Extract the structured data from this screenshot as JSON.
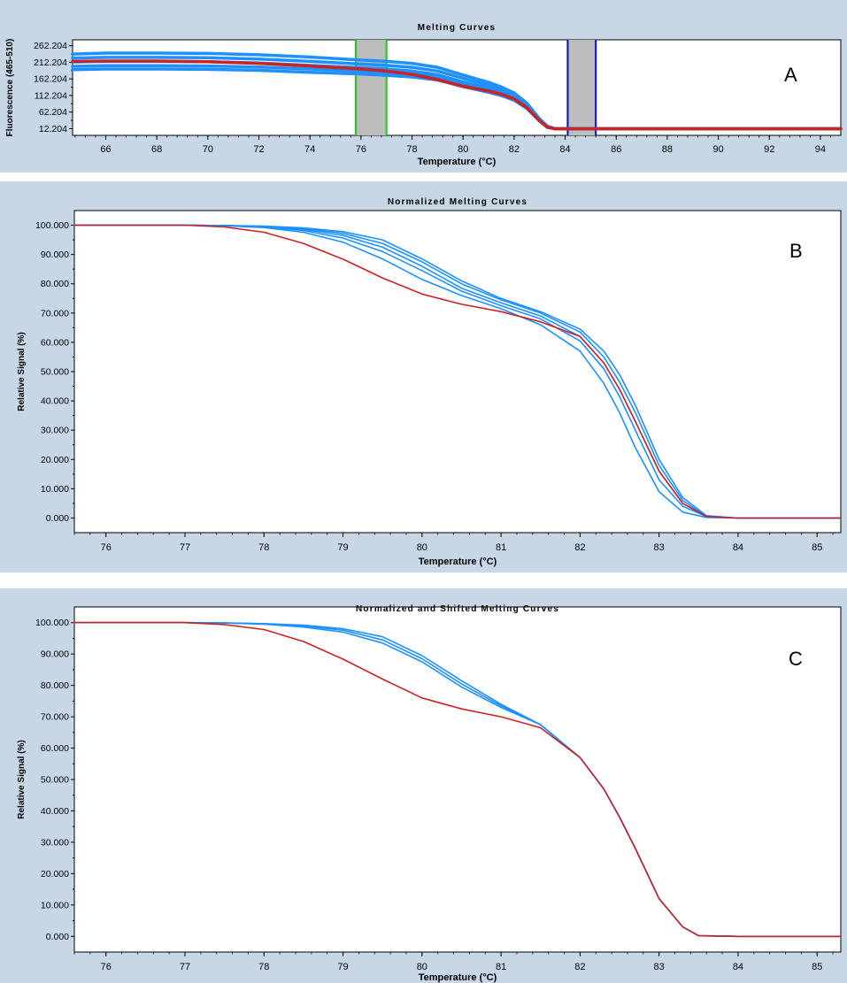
{
  "chart_data": [
    {
      "type": "line",
      "panel_letter": "A",
      "title": "Melting Curves",
      "xlabel": "Temperature (°C)",
      "ylabel": "Fluorescence (465-510)",
      "xlim": [
        64.7,
        94.8
      ],
      "ylim": [
        -8,
        280
      ],
      "x_ticks": [
        66,
        68,
        70,
        72,
        74,
        76,
        78,
        80,
        82,
        84,
        86,
        88,
        90,
        92,
        94
      ],
      "y_ticks": [
        "262.204",
        "212.204",
        "162.204",
        "112.204",
        "62.204",
        "12.204"
      ],
      "regions": [
        {
          "from": 75.8,
          "to": 77.0,
          "border_color": "#22cc22"
        },
        {
          "from": 84.1,
          "to": 85.2,
          "border_color": "#1a1ac8"
        }
      ],
      "series": [
        {
          "color": "#1e90ff",
          "x": [
            64.7,
            66,
            68,
            70,
            72,
            74,
            76,
            77,
            78,
            79,
            80,
            81,
            81.5,
            82,
            82.5,
            83,
            83.3,
            83.6,
            84,
            86,
            88,
            90,
            92,
            94.8
          ],
          "y": [
            213,
            215,
            215,
            214,
            210,
            203,
            196,
            192,
            186,
            175,
            153,
            135,
            123,
            108,
            80,
            38,
            18,
            12,
            12,
            12,
            12,
            12,
            12,
            12
          ]
        },
        {
          "color": "#1e90ff",
          "x": [
            64.7,
            66,
            68,
            70,
            72,
            74,
            76,
            77,
            78,
            79,
            80,
            81,
            81.5,
            82,
            82.5,
            83,
            83.3,
            83.6,
            84,
            86,
            88,
            90,
            92,
            94.8
          ],
          "y": [
            225,
            227,
            227,
            226,
            222,
            215,
            207,
            203,
            197,
            186,
            164,
            143,
            130,
            114,
            85,
            40,
            19,
            12,
            12,
            12,
            12,
            12,
            12,
            12
          ]
        },
        {
          "color": "#1e90ff",
          "x": [
            64.7,
            66,
            68,
            70,
            72,
            74,
            76,
            77,
            78,
            79,
            80,
            81,
            81.5,
            82,
            82.5,
            83,
            83.3,
            83.6,
            84,
            86,
            88,
            90,
            92,
            94.8
          ],
          "y": [
            200,
            202,
            202,
            201,
            198,
            192,
            186,
            182,
            177,
            167,
            146,
            128,
            117,
            103,
            76,
            36,
            17,
            12,
            12,
            12,
            12,
            12,
            12,
            12
          ]
        },
        {
          "color": "#1e90ff",
          "x": [
            64.7,
            66,
            68,
            70,
            72,
            74,
            76,
            77,
            78,
            79,
            80,
            81,
            81.5,
            82,
            82.5,
            83,
            83.3,
            83.6,
            84,
            86,
            88,
            90,
            92,
            94.8
          ],
          "y": [
            237,
            240,
            240,
            239,
            235,
            228,
            219,
            215,
            209,
            197,
            174,
            152,
            138,
            120,
            89,
            42,
            20,
            12,
            12,
            12,
            12,
            12,
            12,
            12
          ]
        },
        {
          "color": "#cc2222",
          "x": [
            64.7,
            66,
            68,
            70,
            72,
            74,
            76,
            77,
            78,
            79,
            80,
            81,
            81.5,
            82,
            82.5,
            83,
            83.3,
            83.6,
            84,
            86,
            88,
            90,
            92,
            94.8
          ],
          "y": [
            215,
            216,
            216,
            214,
            209,
            201,
            192,
            186,
            176,
            160,
            140,
            126,
            116,
            102,
            76,
            36,
            17,
            12,
            12,
            12,
            12,
            12,
            12,
            12
          ]
        },
        {
          "color": "#1e90ff",
          "x": [
            64.7,
            66,
            68,
            70,
            72,
            74,
            76,
            77,
            78,
            79,
            80,
            81,
            81.5,
            82,
            82.5,
            83,
            83.3,
            83.6,
            84,
            86,
            88,
            90,
            92,
            94.8
          ],
          "y": [
            190,
            192,
            192,
            191,
            188,
            182,
            177,
            173,
            168,
            159,
            139,
            122,
            112,
            98,
            73,
            35,
            16,
            12,
            12,
            12,
            12,
            12,
            12,
            12
          ]
        }
      ]
    },
    {
      "type": "line",
      "panel_letter": "B",
      "title": "Normalized Melting Curves",
      "xlabel": "Temperature (°C)",
      "ylabel": "Relative Signal (%)",
      "xlim": [
        75.6,
        85.3
      ],
      "ylim": [
        -5,
        105
      ],
      "x_ticks": [
        76,
        77,
        78,
        79,
        80,
        81,
        82,
        83,
        84,
        85
      ],
      "y_ticks": [
        "100.000",
        "90.000",
        "80.000",
        "70.000",
        "60.000",
        "50.000",
        "40.000",
        "30.000",
        "20.000",
        "10.000",
        "0.000"
      ],
      "series": [
        {
          "color": "#1e90ff",
          "x": [
            75.6,
            77,
            77.5,
            78,
            78.5,
            79,
            79.5,
            80,
            80.5,
            81,
            81.5,
            82,
            82.3,
            82.5,
            82.7,
            83,
            83.3,
            83.6,
            84,
            85.3
          ],
          "y": [
            100,
            100,
            99.9,
            99.5,
            98.6,
            96.5,
            92.5,
            86,
            78.5,
            73.5,
            69,
            62,
            53,
            44,
            33,
            16,
            5,
            0.5,
            0,
            0
          ]
        },
        {
          "color": "#1e90ff",
          "x": [
            75.6,
            77,
            77.5,
            78,
            78.5,
            79,
            79.5,
            80,
            80.5,
            81,
            81.5,
            82,
            82.3,
            82.5,
            82.7,
            83,
            83.3,
            83.6,
            84,
            85.3
          ],
          "y": [
            100,
            100,
            99.9,
            99.6,
            98.9,
            97.2,
            93.8,
            87.5,
            80,
            74.5,
            70,
            63.5,
            55,
            46.5,
            36,
            18,
            6,
            0.5,
            0,
            0
          ]
        },
        {
          "color": "#1e90ff",
          "x": [
            75.6,
            77,
            77.5,
            78,
            78.5,
            79,
            79.5,
            80,
            80.5,
            81,
            81.5,
            82,
            82.3,
            82.5,
            82.7,
            83,
            83.3,
            83.6,
            84,
            85.3
          ],
          "y": [
            100,
            100,
            99.9,
            99.4,
            98.2,
            95.6,
            91,
            84.5,
            77.5,
            72.5,
            68,
            60.5,
            51,
            41.5,
            30,
            13,
            4,
            0.5,
            0,
            0
          ]
        },
        {
          "color": "#1e90ff",
          "x": [
            75.6,
            77,
            77.5,
            78,
            78.5,
            79,
            79.5,
            80,
            80.5,
            81,
            81.5,
            82,
            82.3,
            82.5,
            82.7,
            83,
            83.3,
            83.6,
            84,
            85.3
          ],
          "y": [
            100,
            100,
            99.9,
            99.7,
            99.1,
            97.8,
            95,
            88.5,
            81,
            75,
            70.5,
            64.5,
            57,
            49,
            38.5,
            20,
            7,
            0.8,
            0,
            0
          ]
        },
        {
          "color": "#1e90ff",
          "x": [
            75.6,
            77,
            77.5,
            78,
            78.5,
            79,
            79.5,
            80,
            80.5,
            81,
            81.5,
            82,
            82.3,
            82.5,
            82.7,
            83,
            83.3,
            83.6,
            84,
            85.3
          ],
          "y": [
            100,
            100,
            99.8,
            99.2,
            97.6,
            94.2,
            88.5,
            81.5,
            76,
            71.5,
            66,
            57,
            46,
            36,
            24,
            9,
            2,
            0.2,
            0,
            0
          ]
        },
        {
          "color": "#cc2222",
          "x": [
            75.6,
            77,
            77.5,
            78,
            78.5,
            79,
            79.5,
            80,
            80.5,
            81,
            81.5,
            82,
            82.3,
            82.5,
            82.7,
            83,
            83.3,
            83.6,
            84,
            85.3
          ],
          "y": [
            100,
            100,
            99.4,
            97.6,
            93.8,
            88.4,
            82,
            76.5,
            73,
            70.5,
            67,
            62,
            53,
            44,
            33,
            16,
            5,
            0.5,
            0,
            0
          ]
        }
      ]
    },
    {
      "type": "line",
      "panel_letter": "C",
      "title": "Normalized and Shifted Melting Curves",
      "xlabel": "Temperature (°C)",
      "ylabel": "Relative Signal (%)",
      "xlim": [
        75.6,
        85.3
      ],
      "ylim": [
        -5,
        105
      ],
      "x_ticks": [
        76,
        77,
        78,
        79,
        80,
        81,
        82,
        83,
        84,
        85
      ],
      "y_ticks": [
        "100.000",
        "90.000",
        "80.000",
        "70.000",
        "60.000",
        "50.000",
        "40.000",
        "30.000",
        "20.000",
        "10.000",
        "0.000"
      ],
      "series": [
        {
          "color": "#1e90ff",
          "x": [
            75.6,
            77,
            77.5,
            78,
            78.5,
            79,
            79.5,
            80,
            80.5,
            81,
            81.5,
            82,
            82.3,
            82.5,
            82.7,
            83,
            83.3,
            83.5,
            84,
            85.3
          ],
          "y": [
            100,
            100,
            99.9,
            99.6,
            98.9,
            97.6,
            94.5,
            88.5,
            80.5,
            73.5,
            67.5,
            57,
            47,
            38,
            28,
            12,
            3,
            0.2,
            0,
            0
          ]
        },
        {
          "color": "#1e90ff",
          "x": [
            75.6,
            77,
            77.5,
            78,
            78.5,
            79,
            79.5,
            80,
            80.5,
            81,
            81.5,
            82,
            82.3,
            82.5,
            82.7,
            83,
            83.3,
            83.5,
            84,
            85.3
          ],
          "y": [
            100,
            100,
            99.9,
            99.7,
            99.2,
            98.1,
            95.5,
            89.5,
            81.5,
            74,
            67.5,
            57,
            47,
            38,
            28,
            12,
            3,
            0.2,
            0,
            0
          ]
        },
        {
          "color": "#1e90ff",
          "x": [
            75.6,
            77,
            77.5,
            78,
            78.5,
            79,
            79.5,
            80,
            80.5,
            81,
            81.5,
            82,
            82.3,
            82.5,
            82.7,
            83,
            83.3,
            83.5,
            84,
            85.3
          ],
          "y": [
            100,
            100,
            99.9,
            99.5,
            98.6,
            97,
            93.5,
            87.5,
            79.5,
            73,
            67.5,
            57,
            47,
            38,
            28,
            12,
            3,
            0.2,
            0,
            0
          ]
        },
        {
          "color": "#cc2222",
          "x": [
            75.6,
            77,
            77.5,
            78,
            78.5,
            79,
            79.5,
            80,
            80.5,
            81,
            81.5,
            82,
            82.3,
            82.5,
            82.7,
            83,
            83.3,
            83.5,
            84,
            85.3
          ],
          "y": [
            100,
            100,
            99.4,
            97.8,
            94,
            88.4,
            82,
            76,
            72.5,
            70,
            66.5,
            57,
            47,
            38,
            28,
            12,
            3,
            0.2,
            0,
            0
          ]
        }
      ]
    }
  ]
}
